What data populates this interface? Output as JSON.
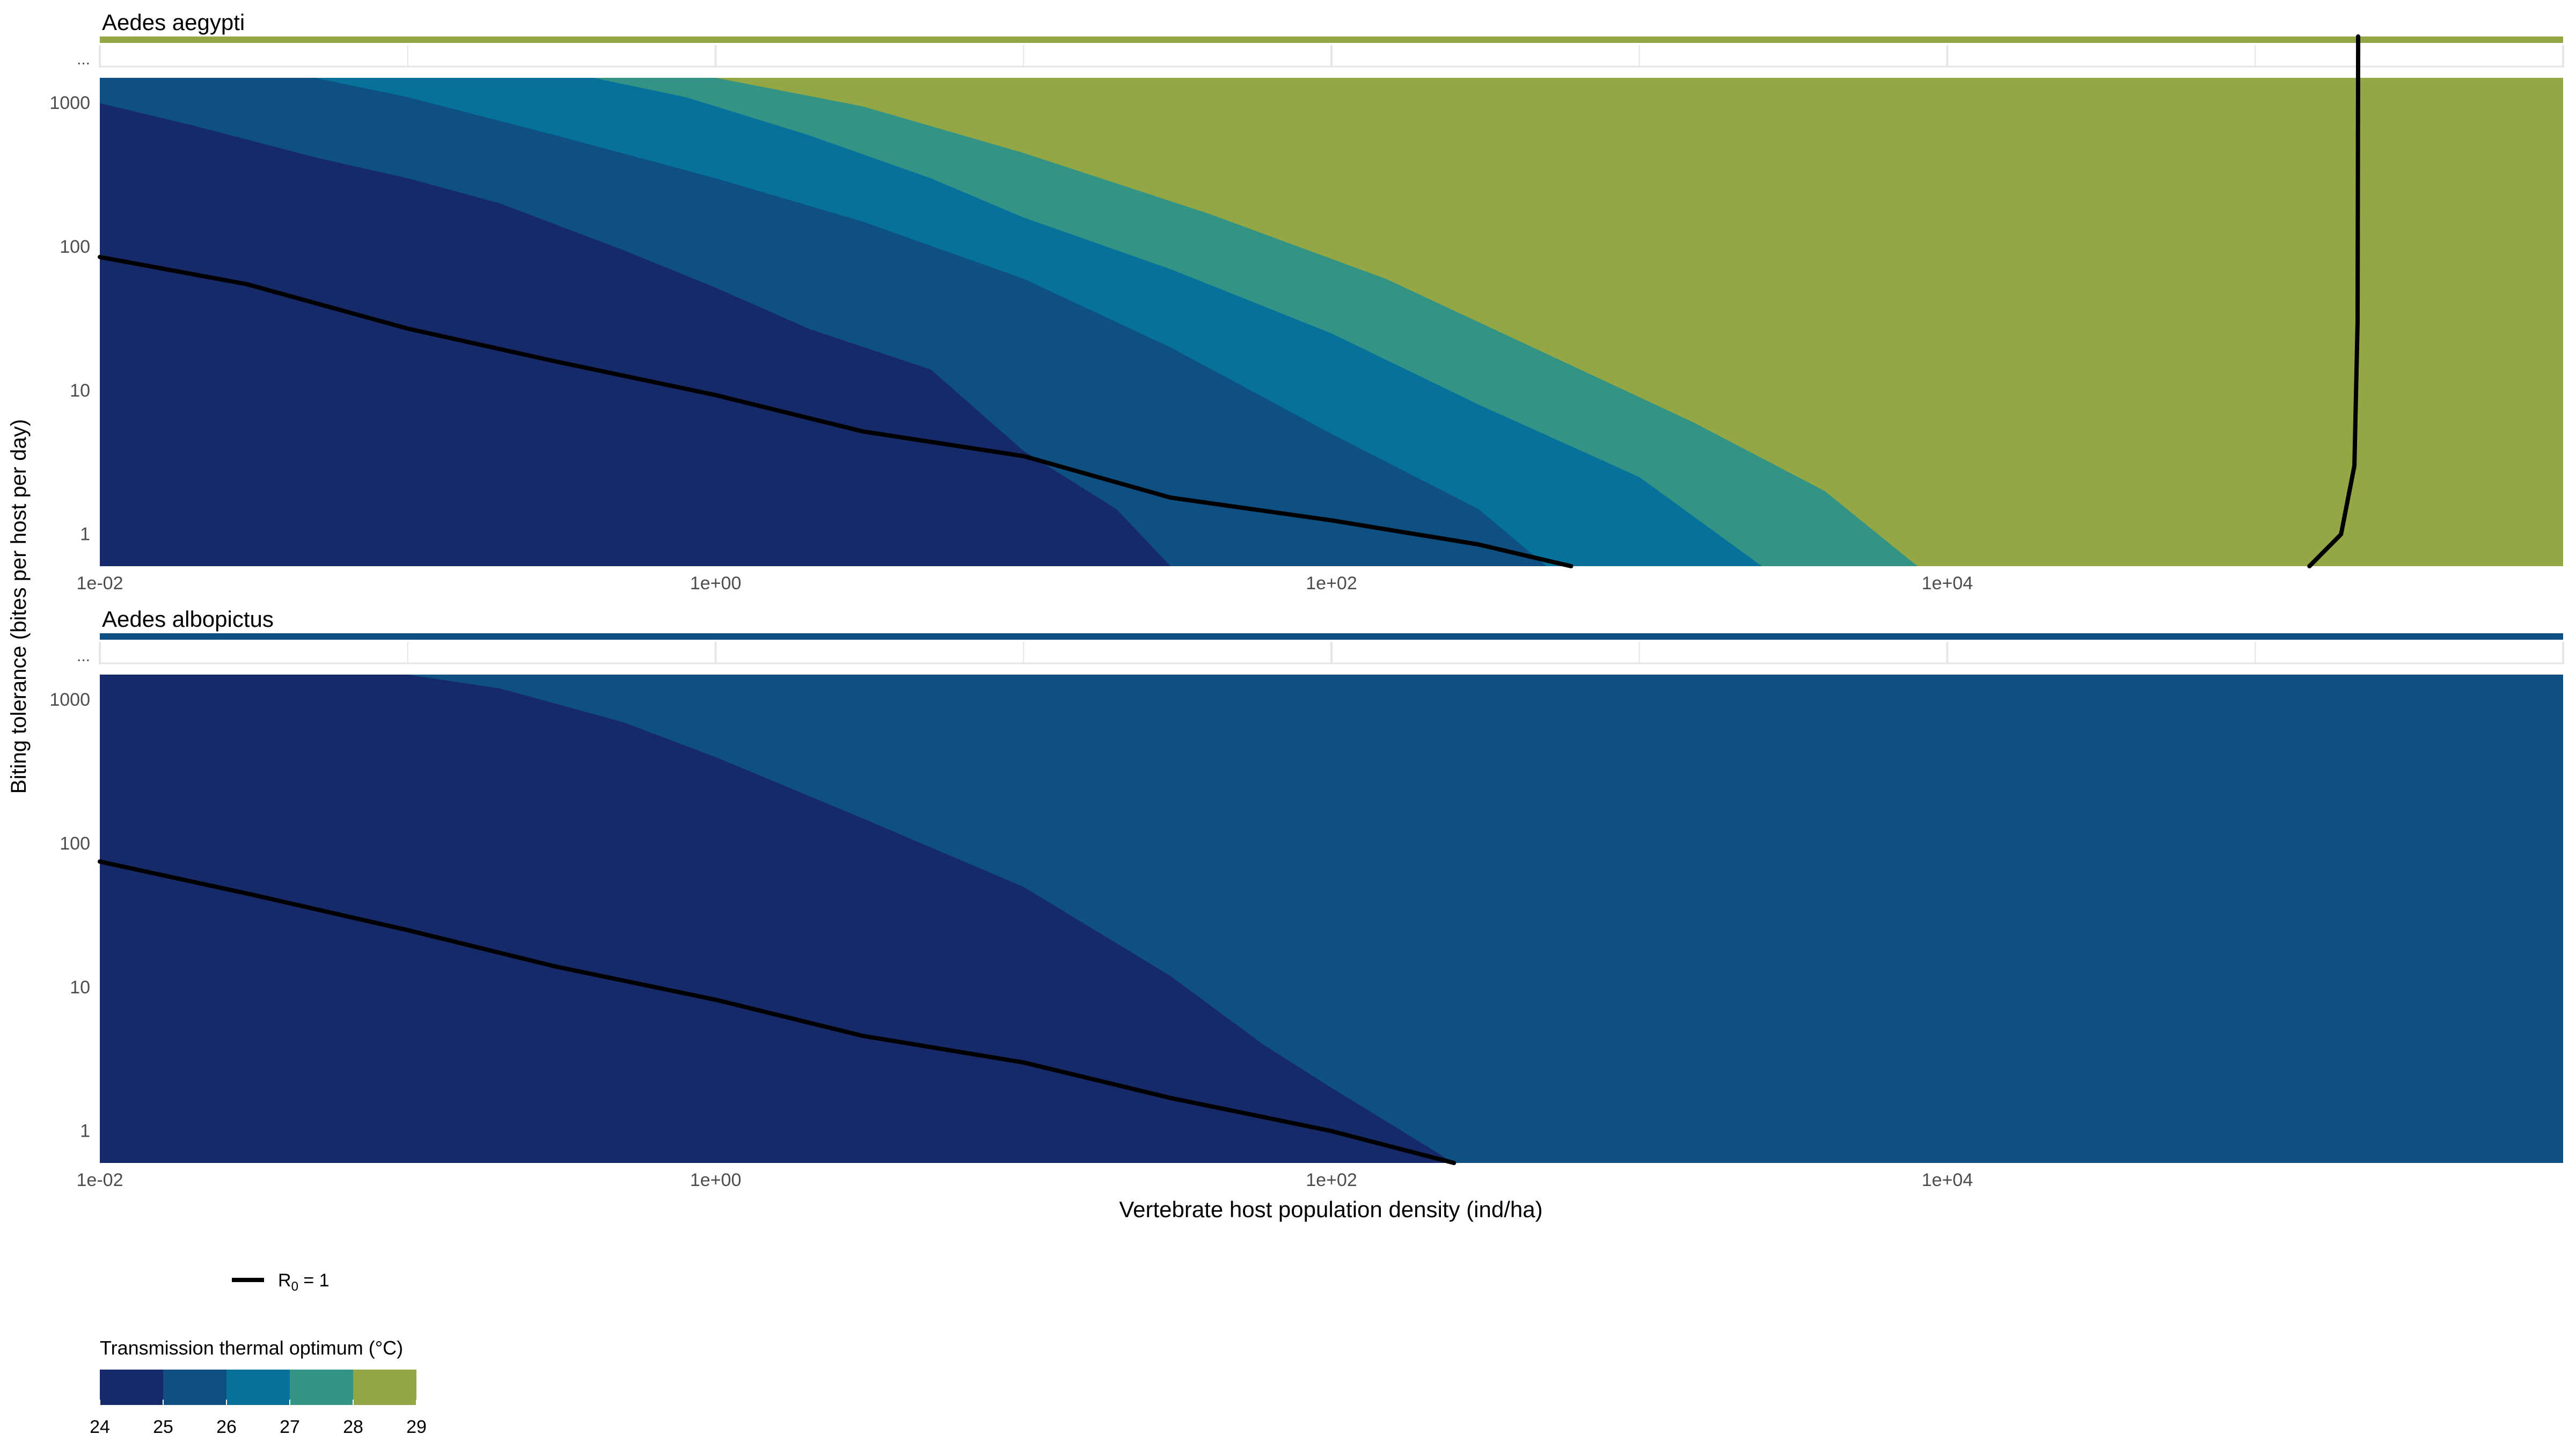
{
  "chart_data": {
    "type": "heatmap",
    "ylabel": "Biting tolerance (bites per host per day)",
    "xlabel": "Vertebrate host population density (ind/ha)",
    "x_scale": "log10",
    "y_scale": "log10",
    "xlim": [
      0.01,
      1000000
    ],
    "ylim": [
      0.6,
      1500
    ],
    "x_ticks": [
      0.01,
      1,
      100,
      10000
    ],
    "x_tick_labels": [
      "1e-02",
      "1e+00",
      "1e+02",
      "1e+04"
    ],
    "y_ticks": [
      1,
      10,
      100,
      1000
    ],
    "y_tick_labels": [
      "1",
      "10",
      "100",
      "1000"
    ],
    "y_overflow_label": "...",
    "fill_bins": [
      {
        "from": 24,
        "to": 25,
        "color": "#162a69"
      },
      {
        "from": 25,
        "to": 26,
        "color": "#0e5082"
      },
      {
        "from": 26,
        "to": 27,
        "color": "#06729b"
      },
      {
        "from": 27,
        "to": 28,
        "color": "#339485"
      },
      {
        "from": 28,
        "to": 29,
        "color": "#93a845"
      }
    ],
    "line_legend": {
      "label_main": "R",
      "label_sub": "0",
      "label_rest": " = 1",
      "color": "#000000"
    },
    "fill_legend": {
      "title": "Transmission thermal optimum (°C)",
      "breaks": [
        "24",
        "25",
        "26",
        "27",
        "28",
        "29"
      ]
    },
    "panels": [
      {
        "title": "Aedes aegypti",
        "overflow_color": "#93a845",
        "base_color": "#162a69",
        "region_boundaries": [
          {
            "upper_color": "#0e5082",
            "points": [
              [
                0.01,
                1000
              ],
              [
                0.02,
                700
              ],
              [
                0.05,
                420
              ],
              [
                0.1,
                300
              ],
              [
                0.2,
                200
              ],
              [
                0.5,
                95
              ],
              [
                1,
                52
              ],
              [
                2,
                27
              ],
              [
                5,
                14
              ],
              [
                10,
                3.8
              ],
              [
                20,
                1.5
              ],
              [
                30,
                0.6
              ]
            ]
          },
          {
            "upper_color": "#06729b",
            "points": [
              [
                0.05,
                1500
              ],
              [
                0.1,
                1100
              ],
              [
                0.3,
                600
              ],
              [
                1,
                300
              ],
              [
                3,
                150
              ],
              [
                10,
                60
              ],
              [
                30,
                20
              ],
              [
                100,
                5
              ],
              [
                300,
                1.5
              ],
              [
                500,
                0.6
              ]
            ]
          },
          {
            "upper_color": "#339485",
            "points": [
              [
                0.4,
                1500
              ],
              [
                0.8,
                1100
              ],
              [
                2,
                600
              ],
              [
                5,
                300
              ],
              [
                10,
                160
              ],
              [
                30,
                70
              ],
              [
                100,
                25
              ],
              [
                300,
                8
              ],
              [
                1000,
                2.5
              ],
              [
                2500,
                0.6
              ]
            ]
          },
          {
            "upper_color": "#93a845",
            "points": [
              [
                1,
                1500
              ],
              [
                3,
                950
              ],
              [
                10,
                450
              ],
              [
                40,
                170
              ],
              [
                150,
                60
              ],
              [
                500,
                18
              ],
              [
                1500,
                6
              ],
              [
                4000,
                2
              ],
              [
                8000,
                0.6
              ]
            ]
          }
        ],
        "r0_curve": [
          [
            0.01,
            85
          ],
          [
            0.03,
            55
          ],
          [
            0.1,
            27
          ],
          [
            0.3,
            16
          ],
          [
            1,
            9.3
          ],
          [
            3,
            5.2
          ],
          [
            10,
            3.5
          ],
          [
            30,
            1.8
          ],
          [
            100,
            1.25
          ],
          [
            300,
            0.85
          ],
          [
            600,
            0.6
          ]
        ],
        "r0_vertical_curve": [
          [
            150000,
            0.6
          ],
          [
            190000,
            1.0
          ],
          [
            210000,
            3
          ],
          [
            215000,
            30
          ],
          [
            216000,
            1500
          ]
        ]
      },
      {
        "title": "Aedes albopictus",
        "overflow_color": "#0e5082",
        "base_color": "#162a69",
        "region_boundaries": [
          {
            "upper_color": "#0e5082",
            "points": [
              [
                0.1,
                1500
              ],
              [
                0.2,
                1200
              ],
              [
                0.5,
                700
              ],
              [
                1,
                400
              ],
              [
                3,
                150
              ],
              [
                10,
                50
              ],
              [
                30,
                12
              ],
              [
                60,
                4
              ],
              [
                100,
                2
              ],
              [
                250,
                0.6
              ]
            ]
          }
        ],
        "r0_curve": [
          [
            0.01,
            75
          ],
          [
            0.03,
            45
          ],
          [
            0.1,
            25
          ],
          [
            0.3,
            14
          ],
          [
            1,
            8.2
          ],
          [
            3,
            4.6
          ],
          [
            10,
            3.0
          ],
          [
            30,
            1.7
          ],
          [
            100,
            1.0
          ],
          [
            250,
            0.6
          ]
        ],
        "r0_vertical_curve": []
      }
    ]
  }
}
